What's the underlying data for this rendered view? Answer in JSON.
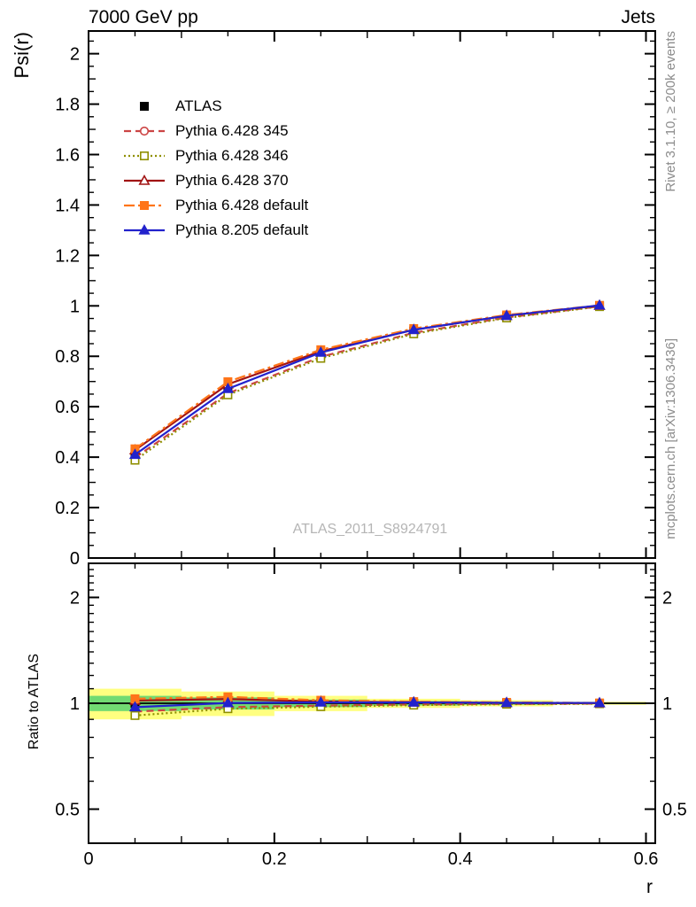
{
  "header": {
    "title_left": "7000 GeV pp",
    "title_right": "Jets"
  },
  "axis_labels": {
    "main_y": "Psi(r)",
    "ratio_y": "Ratio to ATLAS",
    "x": "r"
  },
  "side_notes": {
    "top_right": "Rivet 3.1.10, ≥ 200k events",
    "bottom_right": "mcplots.cern.ch [arXiv:1306.3436]"
  },
  "watermark": "ATLAS_2011_S8924791",
  "chart_data": {
    "type": "line",
    "title": "7000 GeV pp — Jets — integrated jet shape Psi(r)",
    "xlabel": "r",
    "ylabel": "Psi(r)",
    "ratio_ylabel": "Ratio to ATLAS",
    "x": [
      0.05,
      0.15,
      0.25,
      0.35,
      0.45,
      0.55
    ],
    "xlim": [
      0,
      0.61
    ],
    "x_major_ticks": {
      "values": [
        0,
        0.2,
        0.4,
        0.6
      ],
      "labels": [
        "0",
        "0.2",
        "0.4",
        "0.6"
      ]
    },
    "x_minor_step": 0.05,
    "main_panel": {
      "ylim": [
        0,
        2.09
      ],
      "major_ticks": {
        "values": [
          0,
          0.2,
          0.4,
          0.6,
          0.8,
          1,
          1.2,
          1.4,
          1.6,
          1.8,
          2
        ],
        "labels": [
          "0",
          "0.2",
          "0.4",
          "0.6",
          "0.8",
          "1",
          "1.2",
          "1.4",
          "1.6",
          "1.8",
          "2"
        ]
      },
      "minor_step": 0.05
    },
    "ratio_panel": {
      "scale": "log",
      "ylim": [
        0.4,
        2.5
      ],
      "major_ticks": {
        "values": [
          0.5,
          1,
          2
        ],
        "labels": [
          "0.5",
          "1",
          "2"
        ]
      },
      "minor_ticks": [
        0.4,
        0.6,
        0.7,
        0.8,
        0.9,
        1.1,
        1.2,
        1.3,
        1.4,
        1.5,
        1.6,
        1.7,
        1.8,
        1.9,
        2.1,
        2.2,
        2.3,
        2.4
      ],
      "reference": 1
    },
    "series": [
      {
        "name": "ATLAS",
        "color": "#000000",
        "marker": "square",
        "filled": true,
        "line": "none",
        "dash": "",
        "values": [
          0.42,
          0.67,
          0.81,
          0.9,
          0.958,
          1.0
        ],
        "errors": [
          0.012,
          0.009,
          0.007,
          0.005,
          0.004,
          0.003
        ],
        "ratio": [
          1,
          1,
          1,
          1,
          1,
          1
        ]
      },
      {
        "name": "Pythia 6.428 345",
        "color": "#cc4444",
        "marker": "circle",
        "filled": false,
        "line": "solid",
        "dash": "8,5",
        "values": [
          0.398,
          0.653,
          0.798,
          0.893,
          0.954,
          0.998
        ],
        "ratio": [
          0.947,
          0.975,
          0.985,
          0.992,
          0.996,
          0.998
        ]
      },
      {
        "name": "Pythia 6.428 346",
        "color": "#8f8f00",
        "marker": "square",
        "filled": false,
        "line": "solid",
        "dash": "2,3",
        "values": [
          0.388,
          0.647,
          0.792,
          0.889,
          0.952,
          0.997
        ],
        "ratio": [
          0.923,
          0.965,
          0.978,
          0.988,
          0.994,
          0.997
        ]
      },
      {
        "name": "Pythia 6.428 370",
        "color": "#a11414",
        "marker": "triangle",
        "filled": false,
        "line": "solid",
        "dash": "",
        "values": [
          0.428,
          0.689,
          0.82,
          0.905,
          0.961,
          1.001
        ],
        "ratio": [
          1.018,
          1.028,
          1.012,
          1.006,
          1.003,
          1.001
        ]
      },
      {
        "name": "Pythia 6.428 default",
        "color": "#ff7519",
        "marker": "square",
        "filled": true,
        "line": "solid",
        "dash": "12,4,3,4",
        "values": [
          0.433,
          0.699,
          0.826,
          0.91,
          0.964,
          1.002
        ],
        "ratio": [
          1.03,
          1.043,
          1.02,
          1.011,
          1.006,
          1.002
        ]
      },
      {
        "name": "Pythia 8.205 default",
        "color": "#2222cc",
        "marker": "triangle",
        "filled": true,
        "line": "solid",
        "dash": "",
        "values": [
          0.41,
          0.671,
          0.815,
          0.905,
          0.961,
          1.002
        ],
        "ratio": [
          0.975,
          1.002,
          1.006,
          1.006,
          1.003,
          1.002
        ]
      }
    ],
    "uncertainty_bands": {
      "bin_edges": [
        0,
        0.1,
        0.2,
        0.3,
        0.4,
        0.5,
        0.6
      ],
      "yellow_color": "#ffff80",
      "green_color": "#72da72",
      "yellow": [
        [
          0.9,
          1.1
        ],
        [
          0.92,
          1.08
        ],
        [
          0.95,
          1.05
        ],
        [
          0.97,
          1.03
        ],
        [
          0.98,
          1.02
        ],
        [
          0.99,
          1.01
        ]
      ],
      "green": [
        [
          0.95,
          1.05
        ],
        [
          0.96,
          1.04
        ],
        [
          0.975,
          1.025
        ],
        [
          0.985,
          1.015
        ],
        [
          0.99,
          1.01
        ],
        [
          0.995,
          1.005
        ]
      ]
    }
  }
}
